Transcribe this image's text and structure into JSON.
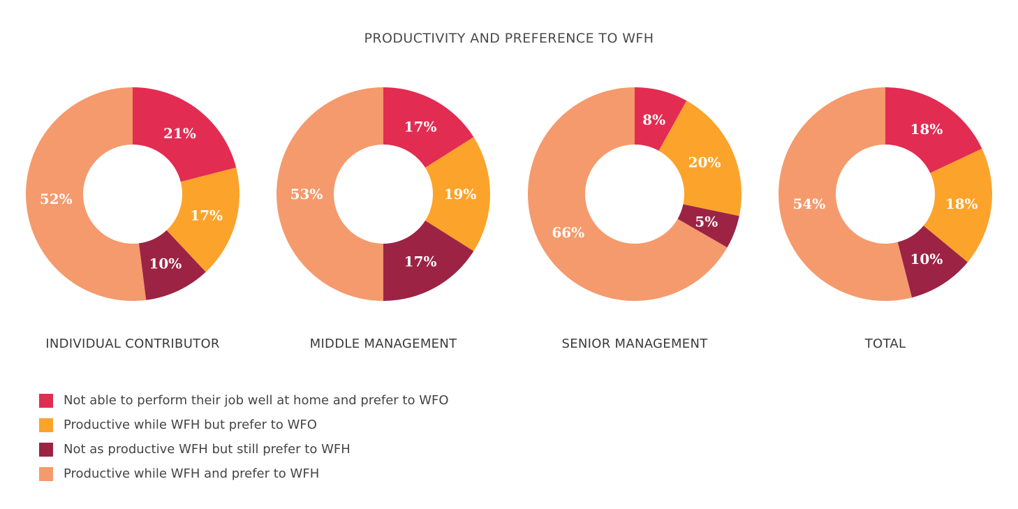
{
  "chart_data": {
    "type": "pie",
    "title": "PRODUCTIVITY AND PREFERENCE TO WFH",
    "categories": [
      "Not able to perform their job well at home and prefer to WFO",
      "Productive while WFH but prefer to WFO",
      "Not as productive WFH but still prefer to WFH",
      "Productive while WFH and prefer to WFH"
    ],
    "colors": [
      "#e22c52",
      "#fca32b",
      "#9c2344",
      "#f59a6c"
    ],
    "legend_position": "bottom-left",
    "charts": [
      {
        "name": "INDIVIDUAL CONTRIBUTOR",
        "values": [
          21,
          17,
          10,
          52
        ],
        "labels": [
          "21%",
          "17%",
          "10%",
          "52%"
        ]
      },
      {
        "name": "MIDDLE MANAGEMENT",
        "values": [
          17,
          19,
          17,
          53
        ],
        "labels": [
          "17%",
          "19%",
          "17%",
          "53%"
        ]
      },
      {
        "name": "SENIOR MANAGEMENT",
        "values": [
          8,
          20,
          5,
          66
        ],
        "labels": [
          "8%",
          "20%",
          "5%",
          "66%"
        ]
      },
      {
        "name": "TOTAL",
        "values": [
          18,
          18,
          10,
          54
        ],
        "labels": [
          "18%",
          "18%",
          "10%",
          "54%"
        ]
      }
    ]
  }
}
